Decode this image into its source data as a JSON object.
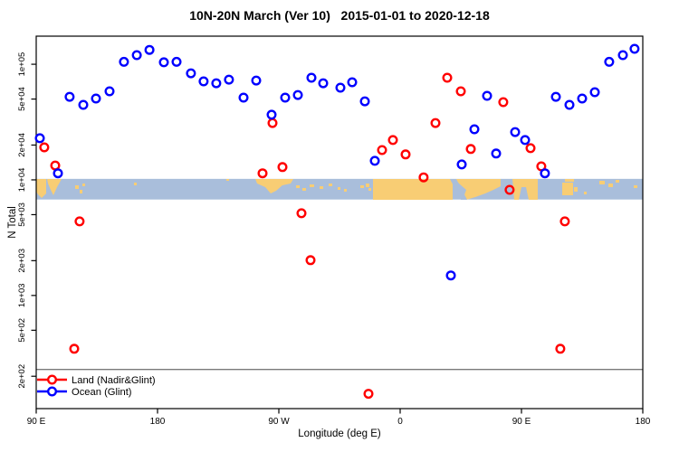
{
  "title": "10N-20N March (Ver 10)   2015-01-01 to 2020-12-18",
  "chart_data": {
    "type": "scatter",
    "xlabel": "Longitude (deg E)",
    "ylabel": "N Total",
    "x_axis": {
      "range": [
        90,
        540
      ],
      "ticks": [
        90,
        180,
        270,
        360,
        450,
        540
      ],
      "labels": [
        "90 E",
        "180",
        "90 W",
        "0",
        "90 E",
        "180"
      ]
    },
    "y_axis": {
      "scale": "log",
      "range": [
        105,
        175000
      ],
      "ticks": [
        200,
        500,
        1000,
        2000,
        5000,
        10000,
        20000,
        50000,
        100000
      ],
      "labels": [
        "2e+02",
        "5e+02",
        "1e+03",
        "2e+03",
        "5e+03",
        "1e+04",
        "2e+04",
        "5e+04",
        "1e+05"
      ]
    },
    "grid": "off",
    "legend_position": "bottom-left",
    "reference_line_n": 229,
    "series": [
      {
        "name": "Land (Nadir&Glint)",
        "color": "#ff0000",
        "points": [
          [
            96.0,
            19100
          ],
          [
            104.1,
            13300
          ],
          [
            118.2,
            346
          ],
          [
            122.2,
            4370
          ],
          [
            257.9,
            11400
          ],
          [
            265.3,
            31000
          ],
          [
            272.7,
            12900
          ],
          [
            286.8,
            5140
          ],
          [
            293.5,
            2020
          ],
          [
            336.5,
            141
          ],
          [
            346.6,
            18100
          ],
          [
            354.6,
            22100
          ],
          [
            364.0,
            16600
          ],
          [
            377.4,
            10500
          ],
          [
            386.2,
            31000
          ],
          [
            394.9,
            76400
          ],
          [
            405.0,
            58300
          ],
          [
            412.4,
            18500
          ],
          [
            436.5,
            47000
          ],
          [
            441.2,
            8200
          ],
          [
            456.7,
            18800
          ],
          [
            464.7,
            13100
          ],
          [
            478.8,
            346
          ],
          [
            482.2,
            4370
          ]
        ]
      },
      {
        "name": "Ocean (Glint)",
        "color": "#0000ff",
        "points": [
          [
            92.7,
            22900
          ],
          [
            106.1,
            11400
          ],
          [
            114.8,
            52300
          ],
          [
            124.9,
            44500
          ],
          [
            134.3,
            50500
          ],
          [
            144.4,
            58300
          ],
          [
            155.1,
            105000
          ],
          [
            164.6,
            120000
          ],
          [
            174.0,
            133000
          ],
          [
            184.7,
            104000
          ],
          [
            194.1,
            105000
          ],
          [
            204.8,
            83500
          ],
          [
            214.2,
            71100
          ],
          [
            223.6,
            68500
          ],
          [
            233.0,
            73600
          ],
          [
            243.8,
            51400
          ],
          [
            253.2,
            72300
          ],
          [
            264.6,
            36600
          ],
          [
            274.7,
            51400
          ],
          [
            284.1,
            54200
          ],
          [
            294.2,
            76400
          ],
          [
            302.9,
            68500
          ],
          [
            315.7,
            62700
          ],
          [
            324.4,
            69800
          ],
          [
            333.8,
            47800
          ],
          [
            341.2,
            14600
          ],
          [
            397.6,
            1490
          ],
          [
            405.7,
            13600
          ],
          [
            415.1,
            27400
          ],
          [
            424.5,
            53300
          ],
          [
            431.2,
            16900
          ],
          [
            445.3,
            25900
          ],
          [
            452.7,
            22100
          ],
          [
            467.4,
            11400
          ],
          [
            475.5,
            52300
          ],
          [
            485.6,
            44500
          ],
          [
            495.0,
            50500
          ],
          [
            504.4,
            57300
          ],
          [
            515.1,
            105000
          ],
          [
            525.2,
            120000
          ],
          [
            533.9,
            136000
          ]
        ]
      }
    ],
    "map_band": {
      "top_n": 10200,
      "bottom_n": 6760,
      "ocean_color": "#a9bedb",
      "land_color": "#f8cd74",
      "land_rects": [
        [
          83,
          205,
          4,
          4
        ],
        [
          88,
          210,
          3,
          4
        ],
        [
          91,
          203,
          3,
          3
        ],
        [
          148,
          202,
          3,
          3
        ],
        [
          250,
          198,
          3,
          2
        ],
        [
          327,
          205,
          4,
          3
        ],
        [
          334,
          208,
          4,
          3
        ],
        [
          342,
          204,
          5,
          3
        ],
        [
          353,
          206,
          4,
          3
        ],
        [
          363,
          203,
          4,
          3
        ],
        [
          373,
          207,
          3,
          3
        ],
        [
          380,
          209,
          3,
          3
        ],
        [
          398,
          205,
          4,
          3
        ],
        [
          404,
          203,
          4,
          4
        ],
        [
          407,
          208,
          3,
          3
        ],
        [
          412,
          198,
          88,
          23
        ],
        [
          621,
          202,
          12,
          14
        ],
        [
          634,
          207,
          4,
          5
        ],
        [
          624,
          198,
          10,
          3
        ],
        [
          645,
          212,
          3,
          3
        ],
        [
          662,
          200,
          6,
          4
        ],
        [
          672,
          203,
          5,
          4
        ],
        [
          680,
          199,
          4,
          3
        ],
        [
          700,
          205,
          4,
          3
        ]
      ],
      "land_polys": [
        [
          [
            40,
            198
          ],
          [
            51,
            198
          ],
          [
            51,
            214
          ],
          [
            46,
            219
          ],
          [
            42,
            215
          ],
          [
            40,
            212
          ]
        ],
        [
          [
            52,
            198
          ],
          [
            68,
            198
          ],
          [
            63,
            207
          ],
          [
            59,
            216
          ],
          [
            56,
            210
          ],
          [
            53,
            203
          ]
        ],
        [
          [
            282,
            198
          ],
          [
            312,
            198
          ],
          [
            313,
            204
          ],
          [
            305,
            211
          ],
          [
            299,
            214
          ],
          [
            293,
            207
          ],
          [
            284,
            203
          ]
        ],
        [
          [
            312,
            198
          ],
          [
            324,
            198
          ],
          [
            321,
            203
          ],
          [
            312,
            205
          ]
        ],
        [
          [
            503,
            198
          ],
          [
            553,
            198
          ],
          [
            553,
            206
          ],
          [
            545,
            210
          ],
          [
            536,
            214
          ],
          [
            525,
            218
          ],
          [
            515,
            221
          ],
          [
            511,
            221
          ],
          [
            515,
            210
          ],
          [
            507,
            203
          ]
        ],
        [
          [
            566,
            198
          ],
          [
            594,
            198
          ],
          [
            594,
            221
          ],
          [
            584,
            221
          ],
          [
            581,
            207
          ],
          [
            576,
            207
          ],
          [
            573,
            221
          ],
          [
            568,
            221
          ],
          [
            567,
            209
          ]
        ]
      ],
      "ocean_polys": [
        [
          [
            497,
            198
          ],
          [
            504,
            198
          ],
          [
            516,
            221
          ],
          [
            509,
            221
          ]
        ]
      ]
    },
    "colors": {
      "axis": "#000000",
      "reference_line": "#7a7a7a"
    }
  },
  "legend": {
    "items": [
      {
        "label": "Land (Nadir&Glint)",
        "color": "#ff0000"
      },
      {
        "label": "Ocean (Glint)",
        "color": "#0000ff"
      }
    ]
  }
}
